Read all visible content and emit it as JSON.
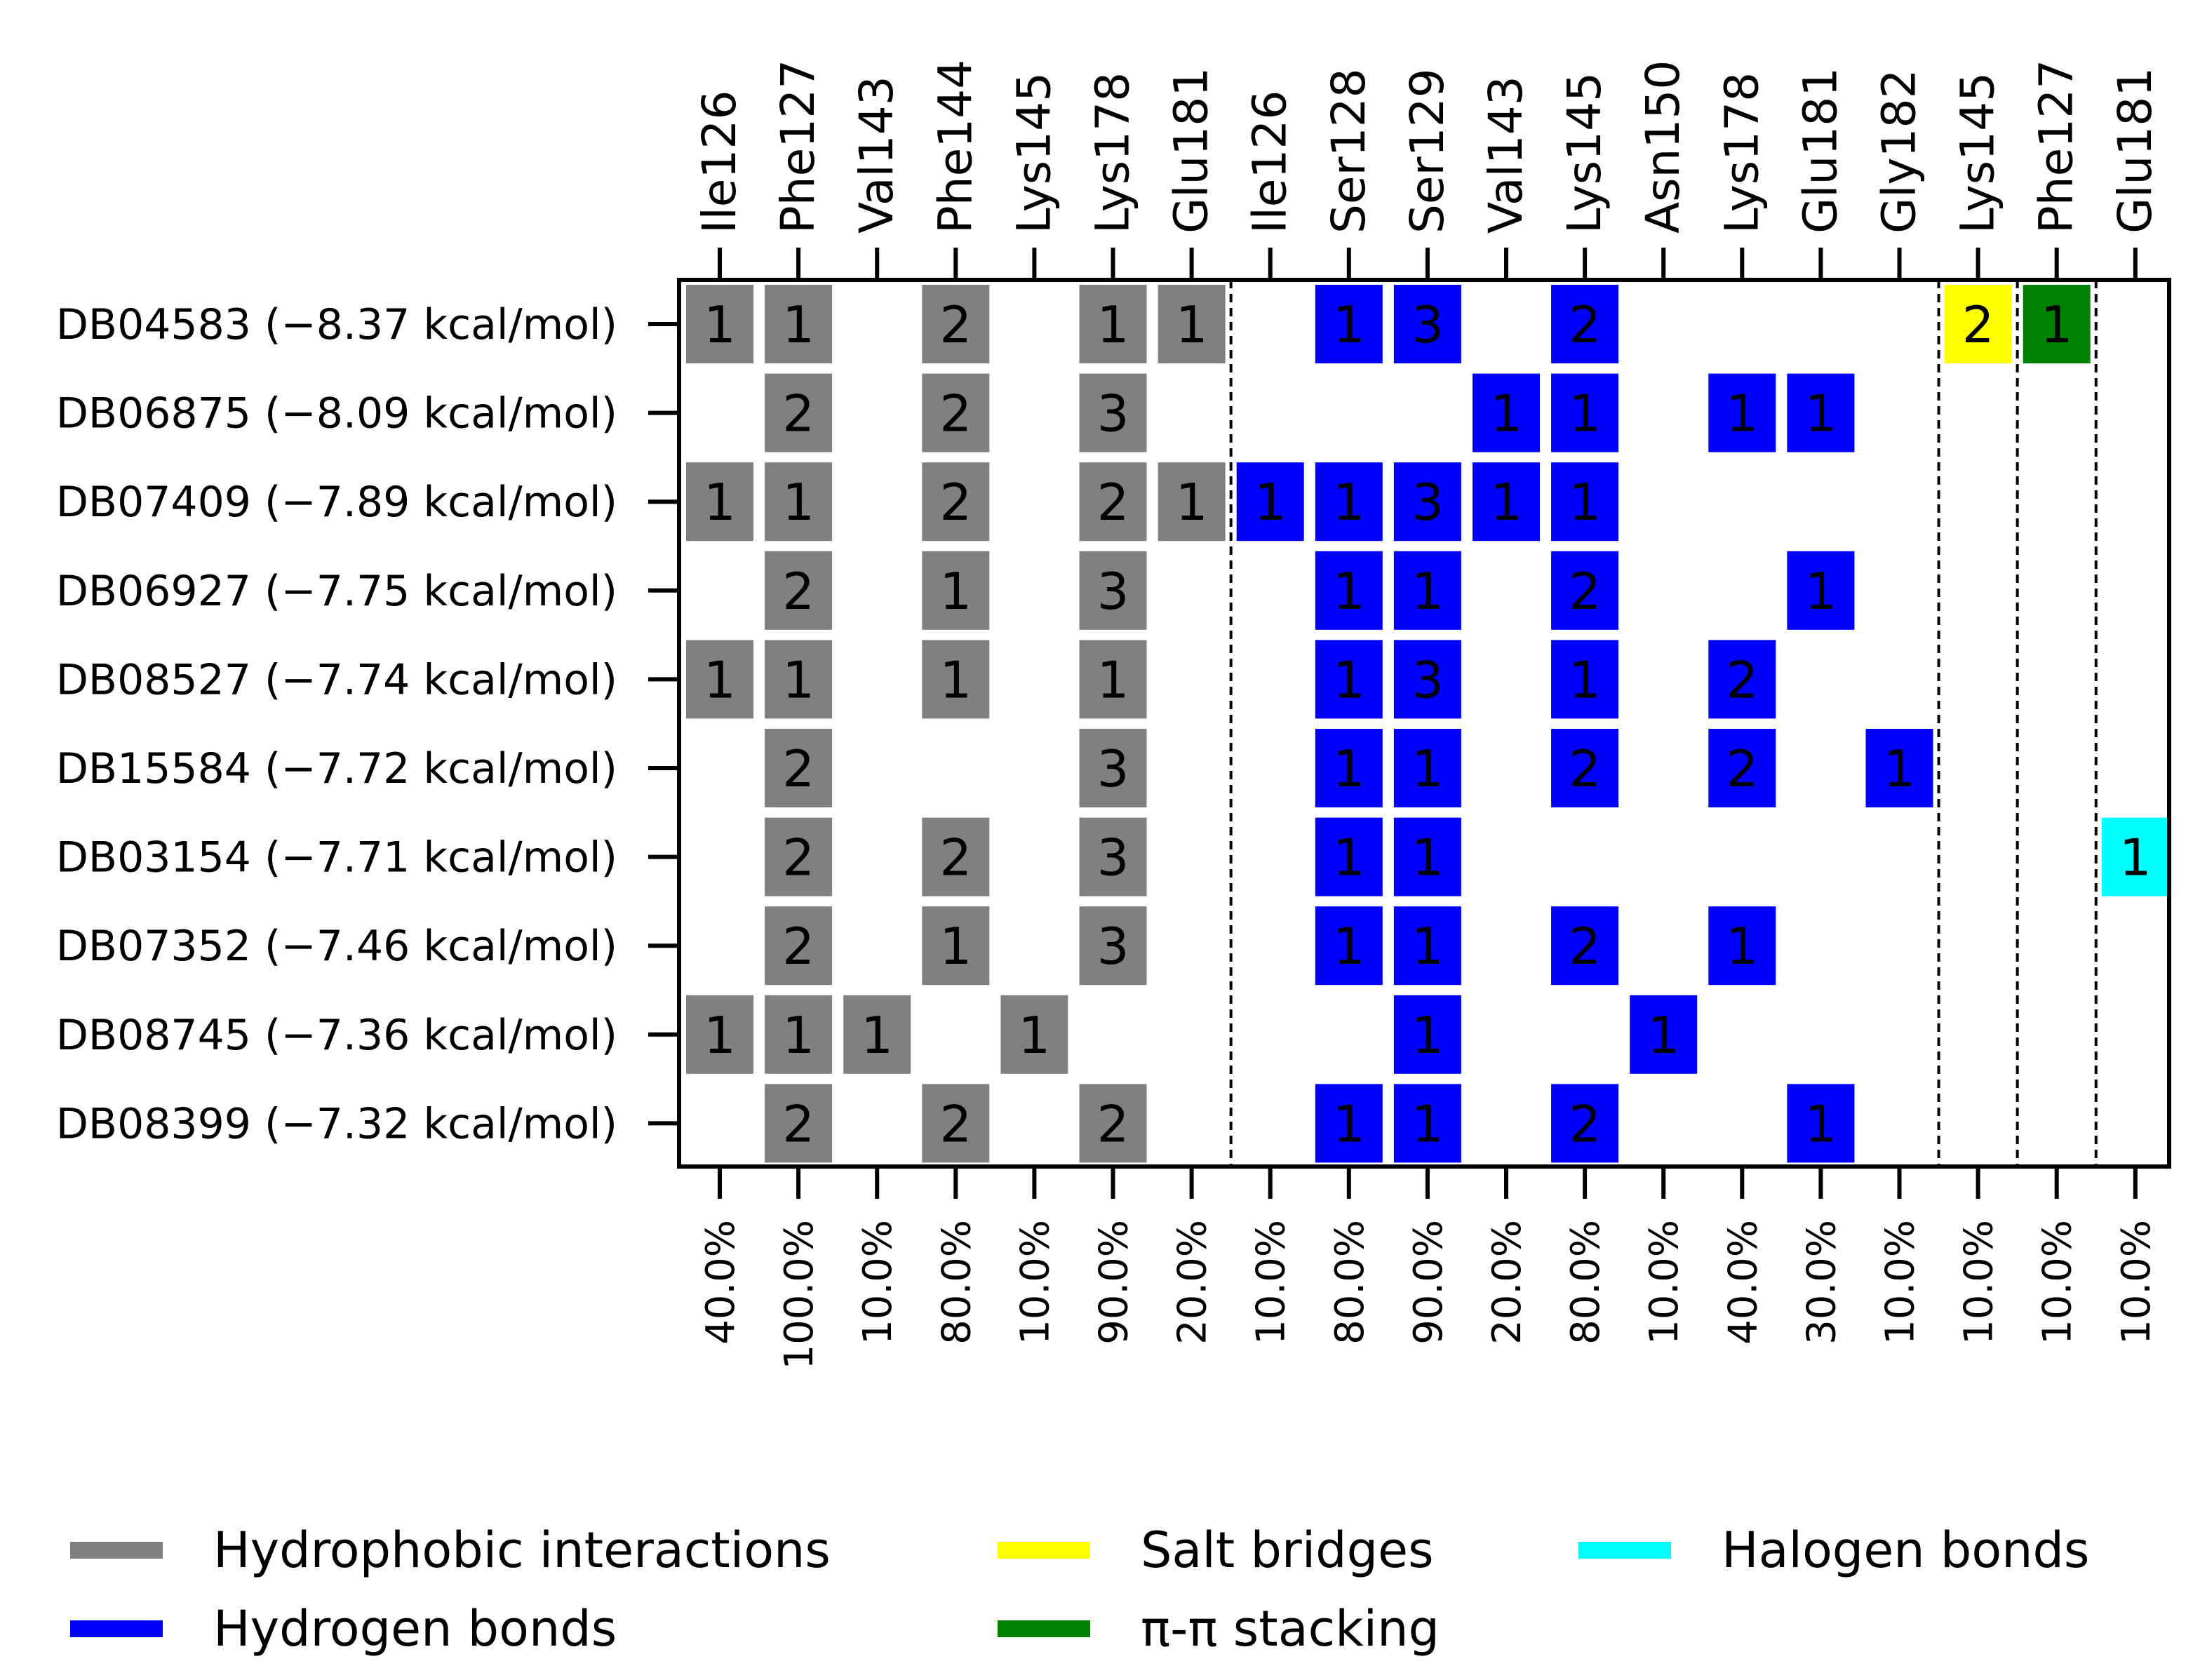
{
  "chart_data": {
    "type": "heatmap",
    "title": "",
    "columns": [
      {
        "residue": "Ile126",
        "pct": "40.0%",
        "type": "hydrophobic"
      },
      {
        "residue": "Phe127",
        "pct": "100.0%",
        "type": "hydrophobic"
      },
      {
        "residue": "Val143",
        "pct": "10.0%",
        "type": "hydrophobic"
      },
      {
        "residue": "Phe144",
        "pct": "80.0%",
        "type": "hydrophobic"
      },
      {
        "residue": "Lys145",
        "pct": "10.0%",
        "type": "hydrophobic"
      },
      {
        "residue": "Lys178",
        "pct": "90.0%",
        "type": "hydrophobic"
      },
      {
        "residue": "Glu181",
        "pct": "20.0%",
        "type": "hydrophobic"
      },
      {
        "residue": "Ile126",
        "pct": "10.0%",
        "type": "hbond"
      },
      {
        "residue": "Ser128",
        "pct": "80.0%",
        "type": "hbond"
      },
      {
        "residue": "Ser129",
        "pct": "90.0%",
        "type": "hbond"
      },
      {
        "residue": "Val143",
        "pct": "20.0%",
        "type": "hbond"
      },
      {
        "residue": "Lys145",
        "pct": "80.0%",
        "type": "hbond"
      },
      {
        "residue": "Asn150",
        "pct": "10.0%",
        "type": "hbond"
      },
      {
        "residue": "Lys178",
        "pct": "40.0%",
        "type": "hbond"
      },
      {
        "residue": "Glu181",
        "pct": "30.0%",
        "type": "hbond"
      },
      {
        "residue": "Gly182",
        "pct": "10.0%",
        "type": "hbond"
      },
      {
        "residue": "Lys145",
        "pct": "10.0%",
        "type": "salt"
      },
      {
        "residue": "Phe127",
        "pct": "10.0%",
        "type": "pipi"
      },
      {
        "residue": "Glu181",
        "pct": "10.0%",
        "type": "halogen"
      }
    ],
    "rows": [
      {
        "label": "DB04583 (−8.37 kcal/mol)",
        "values": [
          1,
          1,
          0,
          2,
          0,
          1,
          1,
          0,
          1,
          3,
          0,
          2,
          0,
          0,
          0,
          0,
          2,
          1,
          0
        ]
      },
      {
        "label": "DB06875 (−8.09 kcal/mol)",
        "values": [
          0,
          2,
          0,
          2,
          0,
          3,
          0,
          0,
          0,
          0,
          1,
          1,
          0,
          1,
          1,
          0,
          0,
          0,
          0
        ]
      },
      {
        "label": "DB07409 (−7.89 kcal/mol)",
        "values": [
          1,
          1,
          0,
          2,
          0,
          2,
          1,
          1,
          1,
          3,
          1,
          1,
          0,
          0,
          0,
          0,
          0,
          0,
          0
        ]
      },
      {
        "label": "DB06927 (−7.75 kcal/mol)",
        "values": [
          0,
          2,
          0,
          1,
          0,
          3,
          0,
          0,
          1,
          1,
          0,
          2,
          0,
          0,
          1,
          0,
          0,
          0,
          0
        ]
      },
      {
        "label": "DB08527 (−7.74 kcal/mol)",
        "values": [
          1,
          1,
          0,
          1,
          0,
          1,
          0,
          0,
          1,
          3,
          0,
          1,
          0,
          2,
          0,
          0,
          0,
          0,
          0
        ]
      },
      {
        "label": "DB15584 (−7.72 kcal/mol)",
        "values": [
          0,
          2,
          0,
          0,
          0,
          3,
          0,
          0,
          1,
          1,
          0,
          2,
          0,
          2,
          0,
          1,
          0,
          0,
          0
        ]
      },
      {
        "label": "DB03154 (−7.71 kcal/mol)",
        "values": [
          0,
          2,
          0,
          2,
          0,
          3,
          0,
          0,
          1,
          1,
          0,
          0,
          0,
          0,
          0,
          0,
          0,
          0,
          1
        ]
      },
      {
        "label": "DB07352 (−7.46 kcal/mol)",
        "values": [
          0,
          2,
          0,
          1,
          0,
          3,
          0,
          0,
          1,
          1,
          0,
          2,
          0,
          1,
          0,
          0,
          0,
          0,
          0
        ]
      },
      {
        "label": "DB08745 (−7.36 kcal/mol)",
        "values": [
          1,
          1,
          1,
          0,
          1,
          0,
          0,
          0,
          0,
          1,
          0,
          0,
          1,
          0,
          0,
          0,
          0,
          0,
          0
        ]
      },
      {
        "label": "DB08399 (−7.32 kcal/mol)",
        "values": [
          0,
          2,
          0,
          2,
          0,
          2,
          0,
          0,
          1,
          1,
          0,
          2,
          0,
          0,
          1,
          0,
          0,
          0,
          0
        ]
      }
    ],
    "interaction_types": {
      "hydrophobic": {
        "label": "Hydrophobic interactions",
        "color": "#808080"
      },
      "hbond": {
        "label": "Hydrogen bonds",
        "color": "#0000ff"
      },
      "salt": {
        "label": "Salt bridges",
        "color": "#ffff00"
      },
      "pipi": {
        "label": "π-π stacking",
        "color": "#008000"
      },
      "halogen": {
        "label": "Halogen bonds",
        "color": "#00ffff"
      }
    },
    "legend_order": [
      "hydrophobic",
      "hbond",
      "salt",
      "pipi",
      "halogen"
    ],
    "group_separators_after": [
      6,
      15,
      16,
      17
    ],
    "legend_position": "bottom"
  }
}
